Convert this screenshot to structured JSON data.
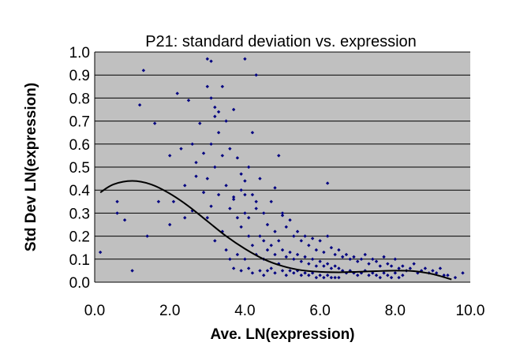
{
  "chart_data": {
    "type": "scatter",
    "title": "P21: standard deviation vs. expression",
    "xlabel": "Ave. LN(expression)",
    "ylabel": "Std Dev LN(expression)",
    "xlim": [
      0,
      10
    ],
    "ylim": [
      0,
      1
    ],
    "x_ticks": [
      "0.0",
      "2.0",
      "4.0",
      "6.0",
      "8.0",
      "10.0"
    ],
    "y_ticks": [
      "0.0",
      "0.1",
      "0.2",
      "0.3",
      "0.4",
      "0.5",
      "0.6",
      "0.7",
      "0.8",
      "0.9",
      "1.0"
    ],
    "grid": "horizontal",
    "legend": "none",
    "colors": {
      "plot_background": "#c0c0c0",
      "points": "#000080",
      "trend": "#000000",
      "grid": "#000000"
    },
    "series": [
      {
        "kind": "points",
        "x": [
          0.15,
          0.6,
          0.6,
          0.8,
          1.0,
          1.2,
          1.3,
          1.4,
          1.6,
          1.7,
          2.0,
          2.0,
          2.1,
          2.2,
          2.3,
          2.4,
          2.4,
          2.5,
          2.6,
          2.6,
          2.7,
          2.8,
          2.9,
          2.9,
          3.0,
          3.0,
          3.0,
          3.1,
          3.1,
          3.1,
          3.2,
          3.2,
          3.2,
          3.3,
          3.3,
          3.4,
          3.4,
          3.4,
          3.5,
          3.5,
          3.5,
          3.6,
          3.6,
          3.6,
          3.7,
          3.7,
          3.7,
          3.8,
          3.8,
          3.8,
          3.9,
          3.9,
          3.9,
          4.0,
          4.0,
          4.0,
          4.0,
          4.1,
          4.1,
          4.1,
          4.2,
          4.2,
          4.2,
          4.2,
          4.3,
          4.3,
          4.3,
          4.4,
          4.4,
          4.4,
          4.5,
          4.5,
          4.5,
          4.5,
          4.6,
          4.6,
          4.6,
          4.7,
          4.7,
          4.7,
          4.8,
          4.8,
          4.8,
          4.9,
          4.9,
          4.9,
          5.0,
          5.0,
          5.0,
          5.1,
          5.1,
          5.1,
          5.2,
          5.2,
          5.2,
          5.3,
          5.3,
          5.3,
          5.4,
          5.4,
          5.4,
          5.5,
          5.5,
          5.5,
          5.6,
          5.6,
          5.6,
          5.7,
          5.7,
          5.7,
          5.8,
          5.8,
          5.8,
          5.9,
          5.9,
          5.9,
          6.0,
          6.0,
          6.0,
          6.1,
          6.1,
          6.1,
          6.2,
          6.2,
          6.2,
          6.3,
          6.3,
          6.3,
          6.4,
          6.4,
          6.4,
          6.5,
          6.5,
          6.5,
          6.6,
          6.6,
          6.7,
          6.7,
          6.8,
          6.8,
          6.9,
          6.9,
          7.0,
          7.0,
          7.1,
          7.1,
          7.2,
          7.2,
          7.3,
          7.3,
          7.4,
          7.4,
          7.5,
          7.5,
          7.6,
          7.6,
          7.7,
          7.7,
          7.8,
          7.8,
          7.9,
          7.9,
          8.0,
          8.0,
          8.1,
          8.1,
          8.2,
          8.2,
          8.3,
          8.4,
          8.5,
          8.6,
          8.7,
          8.8,
          8.9,
          9.0,
          9.1,
          9.2,
          9.3,
          9.4,
          9.6,
          9.8,
          3.0,
          3.2,
          3.3,
          4.0,
          4.3,
          4.8,
          3.9,
          3.7,
          4.1,
          3.1,
          5.0,
          6.2,
          2.7
        ],
        "y": [
          0.13,
          0.35,
          0.3,
          0.27,
          0.05,
          0.77,
          0.92,
          0.2,
          0.69,
          0.35,
          0.55,
          0.25,
          0.35,
          0.82,
          0.58,
          0.28,
          0.42,
          0.79,
          0.6,
          0.31,
          0.52,
          0.69,
          0.39,
          0.56,
          0.97,
          0.45,
          0.28,
          0.8,
          0.96,
          0.6,
          0.72,
          0.5,
          0.18,
          0.65,
          0.38,
          0.85,
          0.55,
          0.22,
          0.7,
          0.42,
          0.14,
          0.58,
          0.32,
          0.1,
          0.75,
          0.36,
          0.06,
          0.54,
          0.28,
          0.12,
          0.47,
          0.24,
          0.05,
          0.97,
          0.44,
          0.3,
          0.1,
          0.5,
          0.2,
          0.06,
          0.65,
          0.38,
          0.16,
          0.04,
          0.9,
          0.32,
          0.12,
          0.45,
          0.2,
          0.05,
          0.3,
          0.18,
          0.1,
          0.03,
          0.25,
          0.14,
          0.05,
          0.35,
          0.16,
          0.06,
          0.22,
          0.12,
          0.04,
          0.55,
          0.18,
          0.08,
          0.3,
          0.14,
          0.05,
          0.24,
          0.11,
          0.03,
          0.27,
          0.13,
          0.05,
          0.2,
          0.1,
          0.04,
          0.22,
          0.12,
          0.05,
          0.18,
          0.09,
          0.03,
          0.2,
          0.11,
          0.04,
          0.16,
          0.08,
          0.03,
          0.19,
          0.1,
          0.04,
          0.14,
          0.07,
          0.02,
          0.18,
          0.09,
          0.03,
          0.13,
          0.07,
          0.02,
          0.43,
          0.08,
          0.03,
          0.15,
          0.06,
          0.02,
          0.12,
          0.07,
          0.02,
          0.14,
          0.06,
          0.02,
          0.11,
          0.05,
          0.12,
          0.04,
          0.1,
          0.05,
          0.11,
          0.04,
          0.09,
          0.03,
          0.1,
          0.04,
          0.12,
          0.05,
          0.08,
          0.03,
          0.1,
          0.04,
          0.09,
          0.03,
          0.07,
          0.02,
          0.11,
          0.04,
          0.08,
          0.03,
          0.07,
          0.02,
          0.1,
          0.04,
          0.06,
          0.02,
          0.07,
          0.03,
          0.05,
          0.06,
          0.08,
          0.04,
          0.05,
          0.06,
          0.04,
          0.05,
          0.04,
          0.06,
          0.03,
          0.03,
          0.02,
          0.04,
          0.85,
          0.76,
          0.74,
          0.38,
          0.35,
          0.41,
          0.4,
          0.37,
          0.28,
          0.33,
          0.29,
          0.2,
          0.46
        ]
      },
      {
        "kind": "trend",
        "x": [
          0.15,
          0.5,
          1.0,
          1.5,
          2.0,
          2.5,
          3.0,
          3.5,
          4.0,
          4.5,
          5.0,
          5.5,
          6.0,
          6.5,
          7.0,
          7.5,
          8.0,
          8.5,
          9.0,
          9.5
        ],
        "y": [
          0.39,
          0.425,
          0.44,
          0.425,
          0.385,
          0.33,
          0.265,
          0.2,
          0.145,
          0.1,
          0.07,
          0.052,
          0.045,
          0.043,
          0.045,
          0.048,
          0.05,
          0.048,
          0.035,
          0.012
        ]
      }
    ]
  }
}
